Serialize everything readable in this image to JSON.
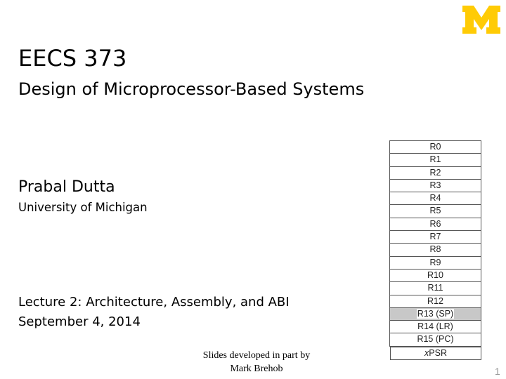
{
  "slide": {
    "title": "EECS 373",
    "subtitle": "Design of Microprocessor-Based Systems",
    "author": "Prabal Dutta",
    "affiliation": "University of Michigan",
    "lecture": "Lecture 2: Architecture, Assembly, and ABI",
    "date": "September 4, 2014",
    "credit_line1": "Slides developed in part by",
    "credit_line2": "Mark Brehob",
    "page_number": "1",
    "logo": {
      "text": "M",
      "color": "#FFCB05"
    }
  },
  "registers": {
    "items": [
      "R0",
      "R1",
      "R2",
      "R3",
      "R4",
      "R5",
      "R6",
      "R7",
      "R8",
      "R9",
      "R10",
      "R11",
      "R12",
      "R13 (SP)",
      "R14 (LR)",
      "R15 (PC)"
    ],
    "highlighted": "R13 (SP)",
    "highlight_color": "#C8C8C8",
    "status_register_prefix": "x",
    "status_register_suffix": "PSR"
  }
}
